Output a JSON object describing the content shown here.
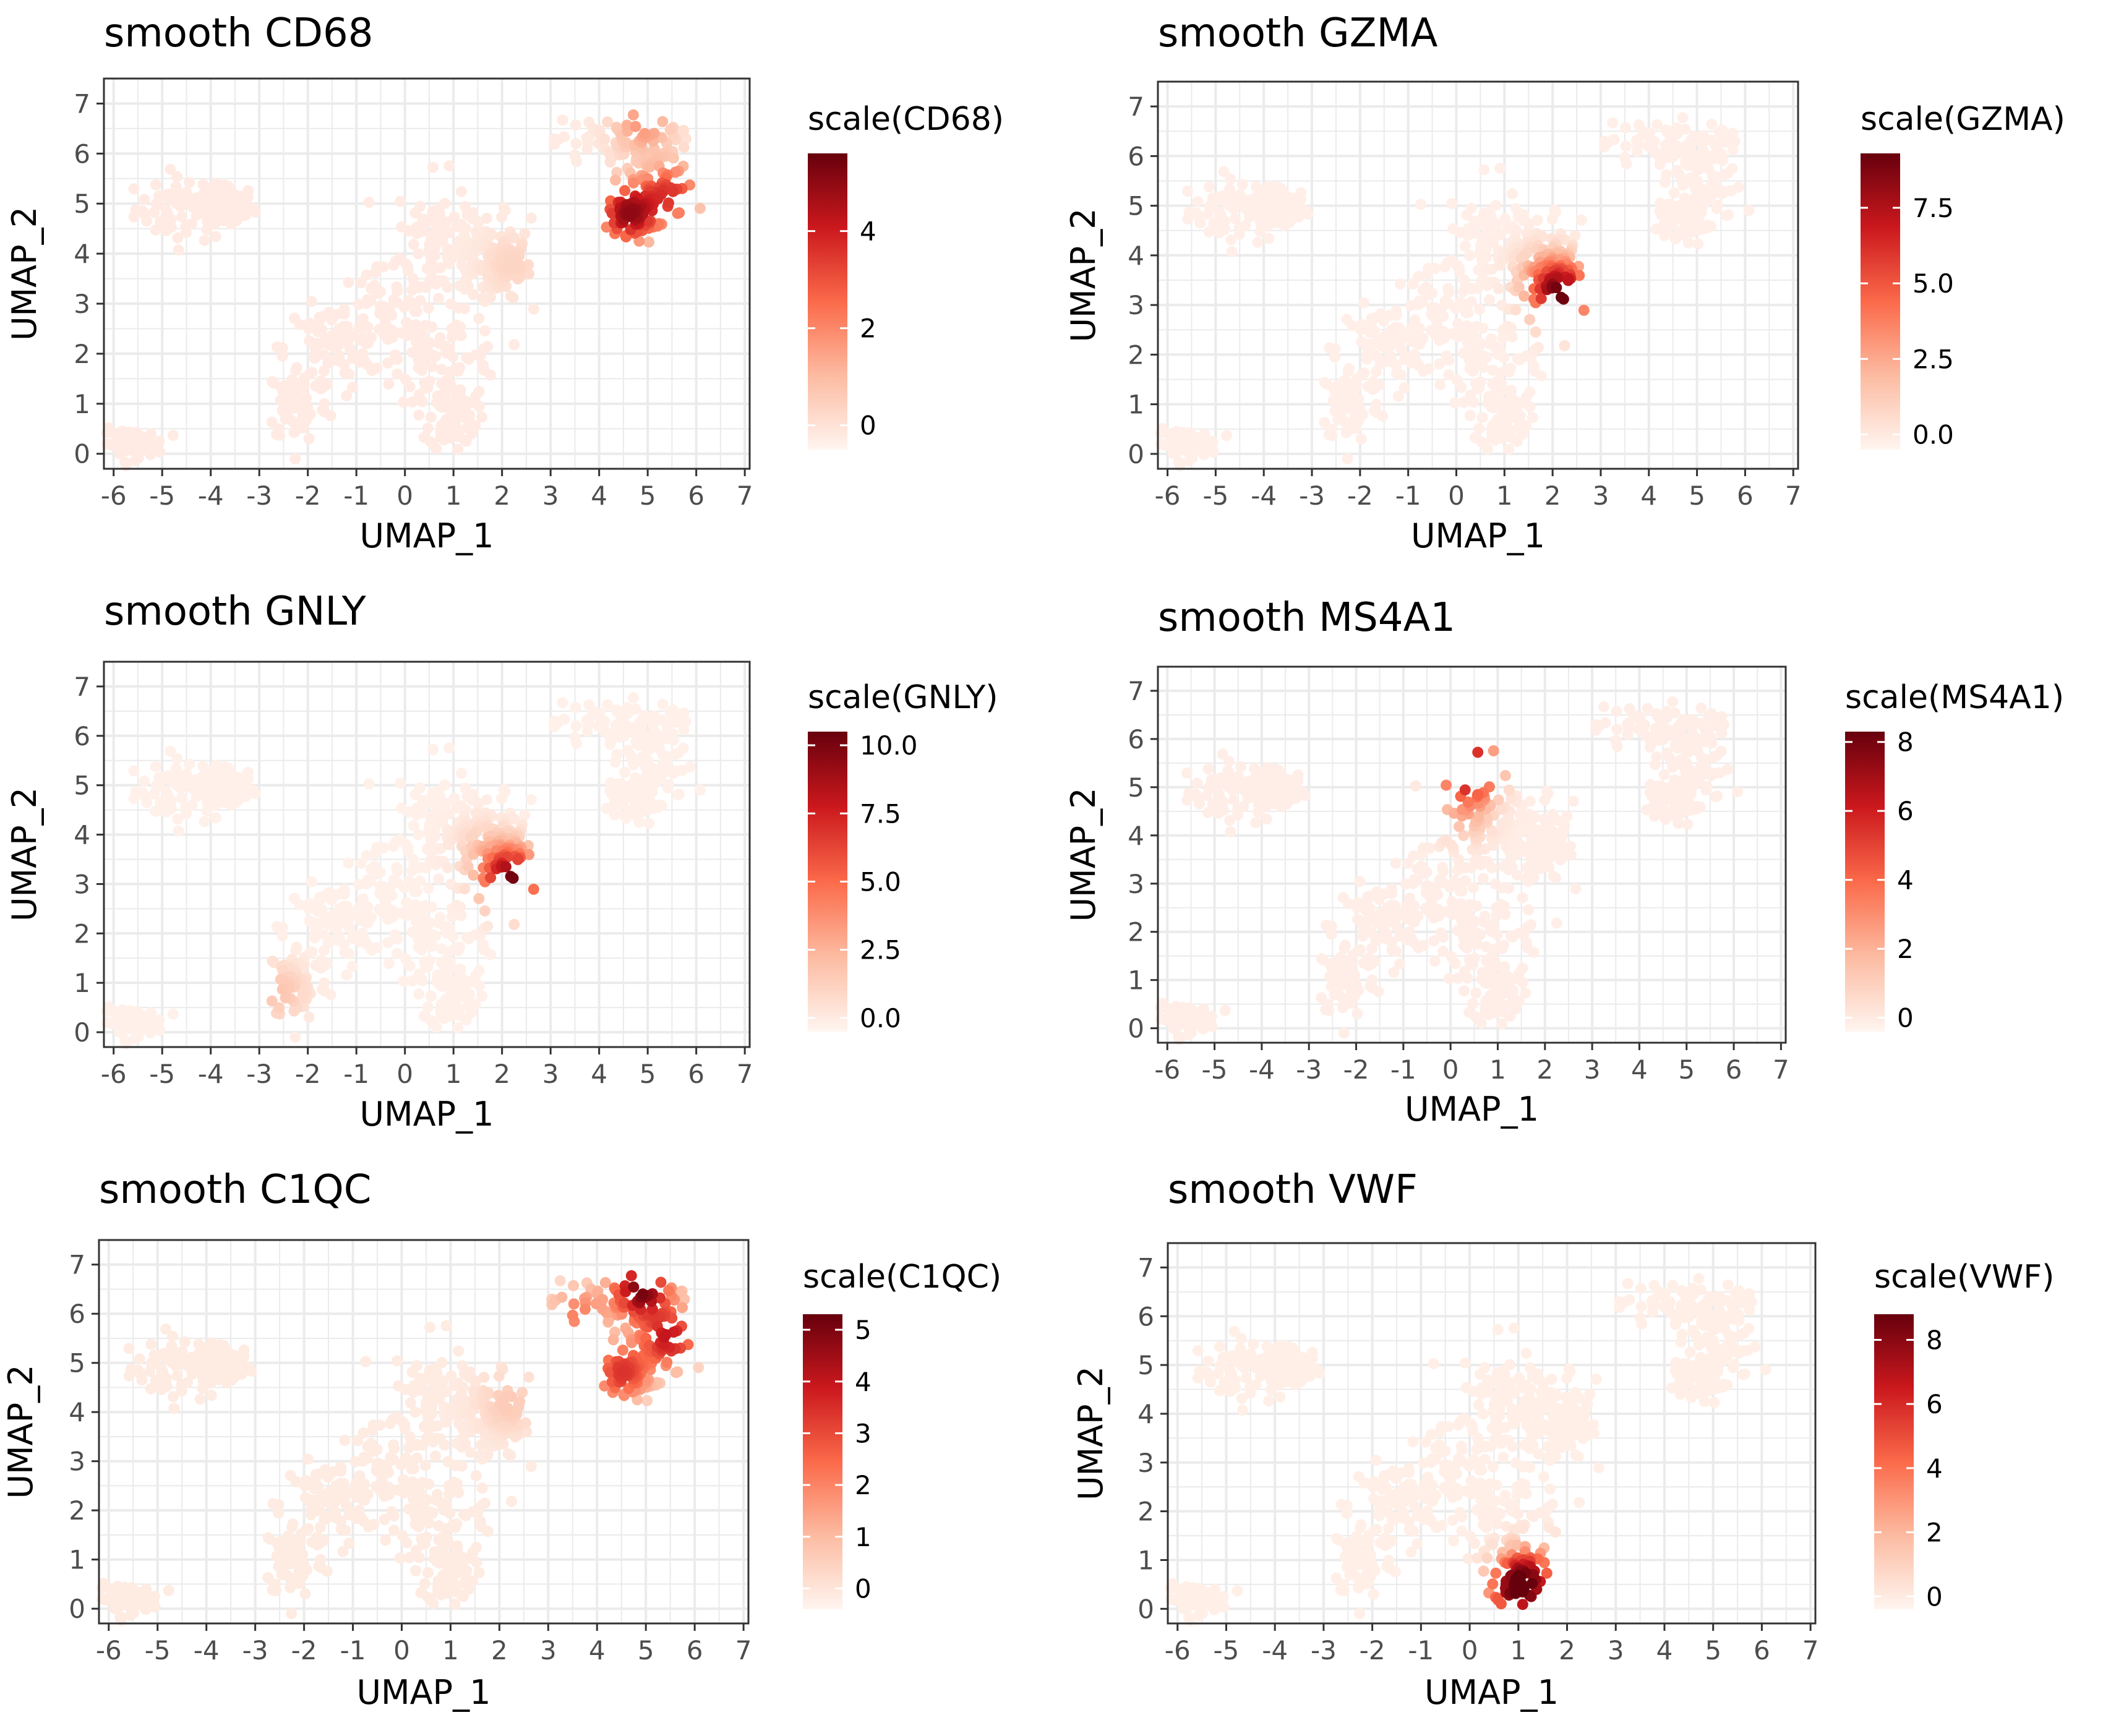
{
  "figure": {
    "panels": [
      {
        "title": "smooth CD68",
        "legend_title": "scale(CD68)"
      },
      {
        "title": "smooth GZMA",
        "legend_title": "scale(GZMA)"
      },
      {
        "title": "smooth GNLY",
        "legend_title": "scale(GNLY)"
      },
      {
        "title": "smooth MS4A1",
        "legend_title": "scale(MS4A1)"
      },
      {
        "title": "smooth C1QC",
        "legend_title": "scale(C1QC)"
      },
      {
        "title": "smooth VWF",
        "legend_title": "scale(VWF)"
      }
    ]
  },
  "chart_data": [
    {
      "type": "scatter",
      "title": "smooth CD68",
      "xlabel": "UMAP_1",
      "ylabel": "UMAP_2",
      "xlim": [
        -6.2,
        7.1
      ],
      "ylim": [
        -0.3,
        7.5
      ],
      "xticks": [
        "-6",
        "-5",
        "-4",
        "-3",
        "-2",
        "-1",
        "0",
        "1",
        "2",
        "3",
        "4",
        "5",
        "6",
        "7"
      ],
      "yticks": [
        "0",
        "1",
        "2",
        "3",
        "4",
        "5",
        "6",
        "7"
      ],
      "grid": true,
      "color_scale": {
        "title": "scale(CD68)",
        "min": -0.5,
        "max": 5.6,
        "ticks": [
          "0",
          "2",
          "4"
        ],
        "tick_values": [
          0,
          2,
          4
        ],
        "colors": [
          "#fff5f0",
          "#fcbba1",
          "#fb6a4a",
          "#cb181d",
          "#67000d"
        ]
      },
      "hotspots": [
        [
          4.6,
          4.8,
          5.0
        ],
        [
          5.5,
          5.2,
          3.5
        ],
        [
          4.9,
          6.6,
          2.0
        ],
        [
          2.2,
          3.8,
          0.6
        ]
      ]
    },
    {
      "type": "scatter",
      "title": "smooth GZMA",
      "xlabel": "UMAP_1",
      "ylabel": "UMAP_2",
      "xlim": [
        -6.2,
        7.1
      ],
      "ylim": [
        -0.3,
        7.5
      ],
      "xticks": [
        "-6",
        "-5",
        "-4",
        "-3",
        "-2",
        "-1",
        "0",
        "1",
        "2",
        "3",
        "4",
        "5",
        "6",
        "7"
      ],
      "yticks": [
        "0",
        "1",
        "2",
        "3",
        "4",
        "5",
        "6",
        "7"
      ],
      "grid": true,
      "color_scale": {
        "title": "scale(GZMA)",
        "min": -0.5,
        "max": 9.3,
        "ticks": [
          "0.0",
          "2.5",
          "5.0",
          "7.5"
        ],
        "tick_values": [
          0,
          2.5,
          5,
          7.5
        ],
        "colors": [
          "#fff5f0",
          "#fcbba1",
          "#fb6a4a",
          "#cb181d",
          "#67000d"
        ]
      },
      "hotspots": [
        [
          2.2,
          3.2,
          8.8
        ],
        [
          1.8,
          3.6,
          2.0
        ]
      ]
    },
    {
      "type": "scatter",
      "title": "smooth GNLY",
      "xlabel": "UMAP_1",
      "ylabel": "UMAP_2",
      "xlim": [
        -6.2,
        7.1
      ],
      "ylim": [
        -0.3,
        7.5
      ],
      "xticks": [
        "-6",
        "-5",
        "-4",
        "-3",
        "-2",
        "-1",
        "0",
        "1",
        "2",
        "3",
        "4",
        "5",
        "6",
        "7"
      ],
      "yticks": [
        "0",
        "1",
        "2",
        "3",
        "4",
        "5",
        "6",
        "7"
      ],
      "grid": true,
      "color_scale": {
        "title": "scale(GNLY)",
        "min": -0.5,
        "max": 10.5,
        "ticks": [
          "0.0",
          "2.5",
          "5.0",
          "7.5",
          "10.0"
        ],
        "tick_values": [
          0,
          2.5,
          5,
          7.5,
          10
        ],
        "colors": [
          "#fff5f0",
          "#fcbba1",
          "#fb6a4a",
          "#cb181d",
          "#67000d"
        ]
      },
      "hotspots": [
        [
          2.2,
          3.1,
          10.2
        ],
        [
          1.6,
          3.7,
          1.5
        ],
        [
          -2.6,
          0.8,
          2.0
        ]
      ]
    },
    {
      "type": "scatter",
      "title": "smooth MS4A1",
      "xlabel": "UMAP_1",
      "ylabel": "UMAP_2",
      "xlim": [
        -6.2,
        7.1
      ],
      "ylim": [
        -0.3,
        7.5
      ],
      "xticks": [
        "-6",
        "-5",
        "-4",
        "-3",
        "-2",
        "-1",
        "0",
        "1",
        "2",
        "3",
        "4",
        "5",
        "6",
        "7"
      ],
      "yticks": [
        "0",
        "1",
        "2",
        "3",
        "4",
        "5",
        "6",
        "7"
      ],
      "grid": true,
      "color_scale": {
        "title": "scale(MS4A1)",
        "min": -0.4,
        "max": 8.3,
        "ticks": [
          "0",
          "2",
          "4",
          "6",
          "8"
        ],
        "tick_values": [
          0,
          2,
          4,
          6,
          8
        ],
        "colors": [
          "#fff5f0",
          "#fcbba1",
          "#fb6a4a",
          "#cb181d",
          "#67000d"
        ]
      },
      "hotspots": [
        [
          0.4,
          5.4,
          8.2
        ],
        [
          0.3,
          4.5,
          2.0
        ]
      ]
    },
    {
      "type": "scatter",
      "title": "smooth C1QC",
      "xlabel": "UMAP_1",
      "ylabel": "UMAP_2",
      "xlim": [
        -6.2,
        7.1
      ],
      "ylim": [
        -0.3,
        7.5
      ],
      "xticks": [
        "-6",
        "-5",
        "-4",
        "-3",
        "-2",
        "-1",
        "0",
        "1",
        "2",
        "3",
        "4",
        "5",
        "6",
        "7"
      ],
      "yticks": [
        "0",
        "1",
        "2",
        "3",
        "4",
        "5",
        "6",
        "7"
      ],
      "grid": true,
      "color_scale": {
        "title": "scale(C1QC)",
        "min": -0.4,
        "max": 5.3,
        "ticks": [
          "0",
          "1",
          "2",
          "3",
          "4",
          "5"
        ],
        "tick_values": [
          0,
          1,
          2,
          3,
          4,
          5
        ],
        "colors": [
          "#fff5f0",
          "#fcbba1",
          "#fb6a4a",
          "#cb181d",
          "#67000d"
        ]
      },
      "hotspots": [
        [
          4.9,
          6.5,
          5.2
        ],
        [
          5.5,
          5.5,
          4.0
        ],
        [
          4.5,
          4.8,
          3.5
        ],
        [
          3.6,
          6.0,
          2.2
        ],
        [
          2.2,
          4.2,
          0.8
        ]
      ]
    },
    {
      "type": "scatter",
      "title": "smooth VWF",
      "xlabel": "UMAP_1",
      "ylabel": "UMAP_2",
      "xlim": [
        -6.2,
        7.1
      ],
      "ylim": [
        -0.3,
        7.5
      ],
      "xticks": [
        "-6",
        "-5",
        "-4",
        "-3",
        "-2",
        "-1",
        "0",
        "1",
        "2",
        "3",
        "4",
        "5",
        "6",
        "7"
      ],
      "yticks": [
        "0",
        "1",
        "2",
        "3",
        "4",
        "5",
        "6",
        "7"
      ],
      "grid": true,
      "color_scale": {
        "title": "scale(VWF)",
        "min": -0.4,
        "max": 8.8,
        "ticks": [
          "0",
          "2",
          "4",
          "6",
          "8"
        ],
        "tick_values": [
          0,
          2,
          4,
          6,
          8
        ],
        "colors": [
          "#fff5f0",
          "#fcbba1",
          "#fb6a4a",
          "#cb181d",
          "#67000d"
        ]
      },
      "hotspots": [
        [
          1.0,
          0.4,
          8.5
        ],
        [
          1.3,
          0.8,
          3.0
        ]
      ]
    }
  ]
}
